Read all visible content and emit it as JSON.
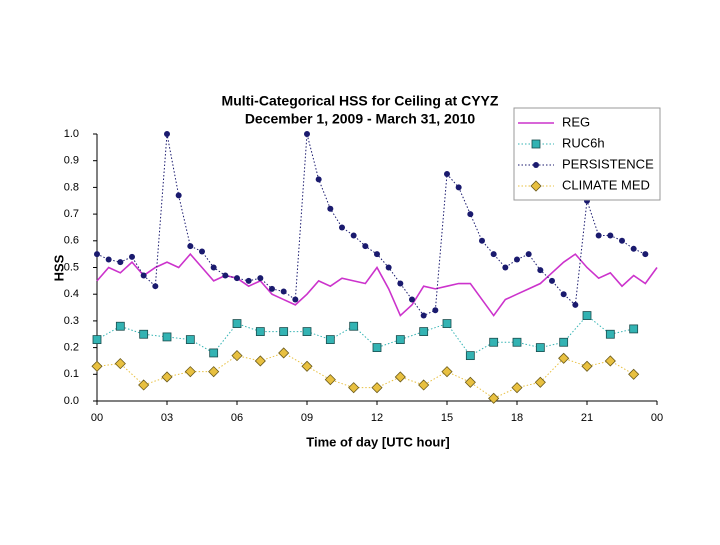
{
  "chart_data": {
    "type": "line",
    "title": "Multi-Categorical HSS for Ceiling at CYYZ",
    "subtitle": "December 1, 2009 - March 31, 2010",
    "xlabel": "Time of day [UTC hour]",
    "ylabel": "HSS",
    "xlim": [
      0,
      24
    ],
    "xticks": [
      {
        "value": 0,
        "label": "00"
      },
      {
        "value": 3,
        "label": "03"
      },
      {
        "value": 6,
        "label": "06"
      },
      {
        "value": 9,
        "label": "09"
      },
      12,
      15,
      18,
      21,
      {
        "value": 24,
        "label": "00"
      }
    ],
    "ylim": [
      0,
      1
    ],
    "yticks": [
      {
        "value": 0,
        "label": "0.0"
      },
      0.1,
      0.2,
      0.3,
      0.4,
      0.5,
      0.6,
      0.7,
      0.8,
      0.9,
      {
        "value": 1,
        "label": "1.0"
      }
    ],
    "legend": "upper right",
    "grid": false,
    "series": [
      {
        "name": "REG",
        "color": "#cc33cc",
        "style": "line",
        "x": [
          0,
          0.5,
          1,
          1.5,
          2,
          2.5,
          3,
          3.5,
          4,
          4.5,
          5,
          5.5,
          6,
          6.5,
          7,
          7.5,
          8,
          8.5,
          9,
          9.5,
          10,
          10.5,
          11,
          11.5,
          12,
          12.5,
          13,
          13.5,
          14,
          14.5,
          15,
          15.5,
          16,
          16.5,
          17,
          17.5,
          18,
          18.5,
          19,
          19.5,
          20,
          20.5,
          21,
          21.5,
          22,
          22.5,
          23,
          23.5,
          24
        ],
        "values": [
          0.45,
          0.5,
          0.48,
          0.52,
          0.47,
          0.5,
          0.52,
          0.5,
          0.55,
          0.5,
          0.45,
          0.47,
          0.46,
          0.43,
          0.45,
          0.4,
          0.38,
          0.36,
          0.4,
          0.45,
          0.43,
          0.46,
          0.45,
          0.44,
          0.5,
          0.42,
          0.32,
          0.36,
          0.43,
          0.42,
          0.43,
          0.44,
          0.44,
          0.38,
          0.32,
          0.38,
          0.4,
          0.42,
          0.44,
          0.48,
          0.52,
          0.55,
          0.5,
          0.46,
          0.48,
          0.43,
          0.47,
          0.44,
          0.5
        ]
      },
      {
        "name": "RUC6h",
        "color": "#33b3b3",
        "style": "square",
        "x": [
          0,
          1,
          2,
          3,
          4,
          5,
          6,
          7,
          8,
          9,
          10,
          11,
          12,
          13,
          14,
          15,
          16,
          17,
          18,
          19,
          20,
          21,
          22,
          23
        ],
        "values": [
          0.23,
          0.28,
          0.25,
          0.24,
          0.23,
          0.18,
          0.29,
          0.26,
          0.26,
          0.26,
          0.23,
          0.28,
          0.2,
          0.23,
          0.26,
          0.29,
          0.17,
          0.22,
          0.22,
          0.2,
          0.22,
          0.32,
          0.25,
          0.27
        ]
      },
      {
        "name": "PERSISTENCE",
        "color": "#1a1a6e",
        "style": "circle",
        "x": [
          0,
          0.5,
          1,
          1.5,
          2,
          2.5,
          3,
          3.5,
          4,
          4.5,
          5,
          5.5,
          6,
          6.5,
          7,
          7.5,
          8,
          8.5,
          9,
          9.5,
          10,
          10.5,
          11,
          11.5,
          12,
          12.5,
          13,
          13.5,
          14,
          14.5,
          15,
          15.5,
          16,
          16.5,
          17,
          17.5,
          18,
          18.5,
          19,
          19.5,
          20,
          20.5,
          21,
          21.5,
          22,
          22.5,
          23,
          23.5
        ],
        "values": [
          0.55,
          0.53,
          0.52,
          0.54,
          0.47,
          0.43,
          1.0,
          0.77,
          0.58,
          0.56,
          0.5,
          0.47,
          0.46,
          0.45,
          0.46,
          0.42,
          0.41,
          0.38,
          1.0,
          0.83,
          0.72,
          0.65,
          0.62,
          0.58,
          0.55,
          0.5,
          0.44,
          0.38,
          0.32,
          0.34,
          0.85,
          0.8,
          0.7,
          0.6,
          0.55,
          0.5,
          0.53,
          0.55,
          0.49,
          0.45,
          0.4,
          0.36,
          0.75,
          0.62,
          0.62,
          0.6,
          0.57,
          0.55
        ]
      },
      {
        "name": "CLIMATE MED",
        "color": "#e8c040",
        "style": "diamond",
        "x": [
          0,
          1,
          2,
          3,
          4,
          5,
          6,
          7,
          8,
          9,
          10,
          11,
          12,
          13,
          14,
          15,
          16,
          17,
          18,
          19,
          20,
          21,
          22,
          23
        ],
        "values": [
          0.13,
          0.14,
          0.06,
          0.09,
          0.11,
          0.11,
          0.17,
          0.15,
          0.18,
          0.13,
          0.08,
          0.05,
          0.05,
          0.09,
          0.06,
          0.11,
          0.07,
          0.01,
          0.05,
          0.07,
          0.16,
          0.13,
          0.15,
          0.1
        ]
      }
    ]
  }
}
